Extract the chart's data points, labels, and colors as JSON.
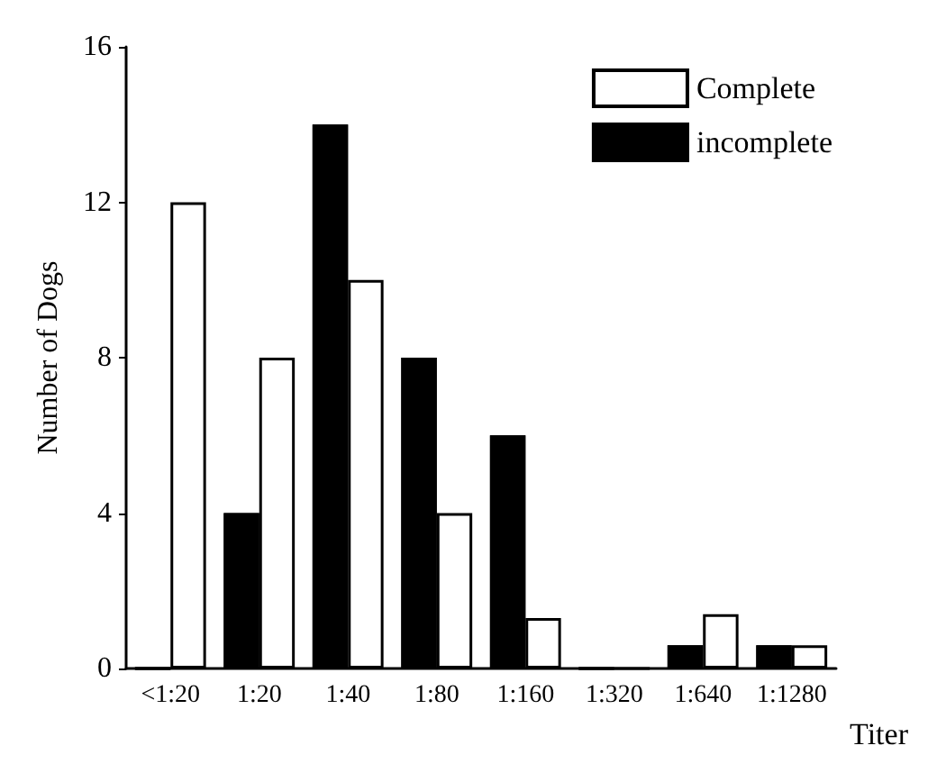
{
  "chart_data": {
    "type": "bar",
    "xlabel": "Titer",
    "ylabel": "Number of Dogs",
    "categories": [
      "<1:20",
      "1:20",
      "1:40",
      "1:80",
      "1:160",
      "1:320",
      "1:640",
      "1:1280"
    ],
    "series": [
      {
        "name": "incomplete",
        "color": "#000000",
        "values": [
          0,
          4,
          14,
          8,
          6,
          0,
          0.6,
          0.6
        ]
      },
      {
        "name": "Complete",
        "color": "#ffffff",
        "values": [
          12,
          8,
          10,
          4,
          1.3,
          0,
          1.4,
          0.6
        ]
      }
    ],
    "ylim": [
      0,
      16
    ],
    "yticks": [
      0,
      4,
      8,
      12,
      16
    ],
    "grid": false,
    "legend": "top right"
  }
}
